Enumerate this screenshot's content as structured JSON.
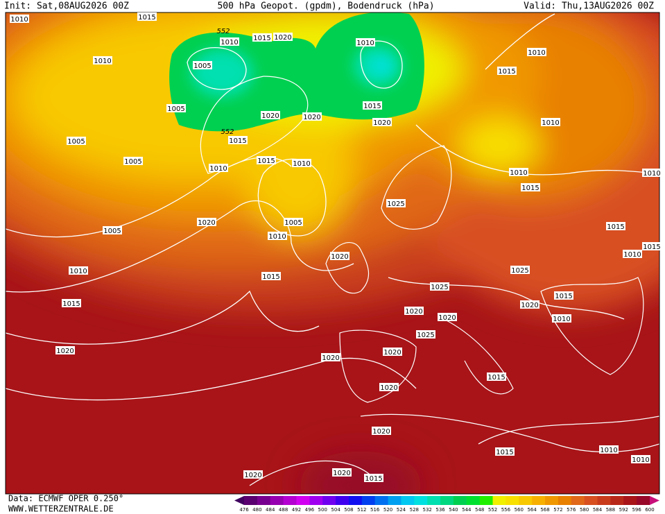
{
  "header": {
    "init": "Init: Sat,08AUG2026 00Z",
    "title": "500 hPa Geopot. (gpdm), Bodendruck (hPa)",
    "valid": "Valid: Thu,13AUG2026 00Z"
  },
  "footer": {
    "source": "Data: ECMWF OPER 0.250°",
    "site": "WWW.WETTERZENTRALE.DE"
  },
  "isobar_labels": [
    1010,
    1015,
    1010,
    1005,
    1005,
    1010,
    1015,
    1020,
    1010,
    1010,
    1015,
    1020,
    1020,
    1015,
    1020,
    1005,
    1005,
    1015,
    1015,
    1010,
    1010,
    1010,
    1010,
    1015,
    1010,
    1025,
    1005,
    1020,
    1005,
    1010,
    1015,
    1010,
    1015,
    1020,
    1025,
    1025,
    1015,
    1020,
    1015,
    1020,
    1020,
    1010,
    1025,
    1020,
    1020,
    1020,
    1020,
    1015,
    1020,
    1015,
    1010,
    1010,
    1020,
    1020,
    1015,
    1015,
    1010
  ],
  "contour_labels": [
    552,
    552
  ],
  "legend": {
    "levels": [
      476,
      480,
      484,
      488,
      492,
      496,
      500,
      504,
      508,
      512,
      516,
      520,
      524,
      528,
      532,
      536,
      540,
      544,
      548,
      552,
      556,
      560,
      564,
      568,
      572,
      576,
      580,
      584,
      588,
      592,
      596,
      600
    ],
    "colors": [
      "#400060",
      "#5a0070",
      "#780090",
      "#9600b0",
      "#b400d0",
      "#d200f0",
      "#a000f0",
      "#7000f0",
      "#4000f0",
      "#1010f0",
      "#0040f0",
      "#0070f0",
      "#00a0f0",
      "#00c8f0",
      "#00e0e0",
      "#00e0b0",
      "#00d880",
      "#00d050",
      "#00e030",
      "#20f000",
      "#f0f000",
      "#f8e000",
      "#f8c800",
      "#f8b000",
      "#f09800",
      "#e88000",
      "#e06818",
      "#d85020",
      "#c83c1c",
      "#b82818",
      "#a81418",
      "#980828",
      "#c8107a"
    ]
  }
}
